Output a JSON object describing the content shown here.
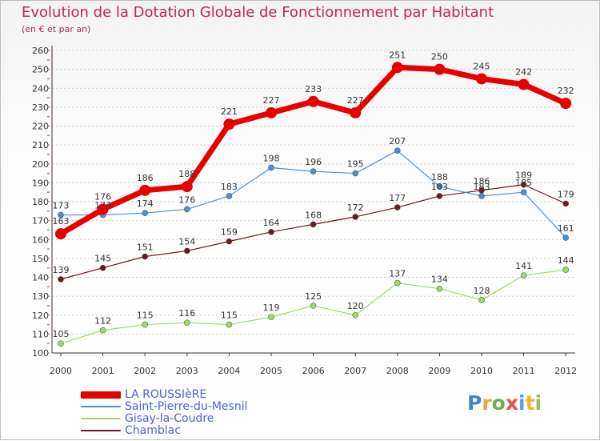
{
  "header": {
    "title": "Evolution de la Dotation Globale de Fonctionnement par Habitant",
    "subtitle": "(en € et par an)"
  },
  "logo": {
    "text": "Proxiti"
  },
  "colors": {
    "title": "#c0245f",
    "legend_text": "#4b5de0",
    "axis": "#333333",
    "grid": "#cccccc"
  },
  "chart_data": {
    "type": "line",
    "title": "Evolution de la Dotation Globale de Fonctionnement par Habitant",
    "subtitle": "(en € et par an)",
    "xlabel": "",
    "ylabel": "",
    "x": [
      "2000",
      "2001",
      "2002",
      "2003",
      "2004",
      "2005",
      "2006",
      "2007",
      "2008",
      "2009",
      "2010",
      "2011",
      "2012"
    ],
    "ylim": [
      100,
      260
    ],
    "yticks": [
      100,
      110,
      120,
      130,
      140,
      150,
      160,
      170,
      180,
      190,
      200,
      210,
      220,
      230,
      240,
      250,
      260
    ],
    "grid": "dashed-horizontal",
    "legend_position": "bottom-left",
    "series": [
      {
        "name": "LA ROUSSIèRE",
        "color": "#e60000",
        "values": [
          163,
          176,
          186,
          188,
          221,
          227,
          233,
          227,
          251,
          250,
          245,
          242,
          232
        ]
      },
      {
        "name": "Saint-Pierre-du-Mesnil",
        "color": "#4e90cf",
        "values": [
          173,
          173,
          174,
          176,
          183,
          198,
          196,
          195,
          207,
          188,
          183,
          185,
          161
        ]
      },
      {
        "name": "Gisay-la-Coudre",
        "color": "#99dd66",
        "values": [
          105,
          112,
          115,
          116,
          115,
          119,
          125,
          120,
          137,
          134,
          128,
          141,
          144
        ]
      },
      {
        "name": "Chamblac",
        "color": "#6b1a1a",
        "values": [
          139,
          145,
          151,
          154,
          159,
          164,
          168,
          172,
          177,
          183,
          186,
          189,
          179
        ]
      }
    ]
  }
}
